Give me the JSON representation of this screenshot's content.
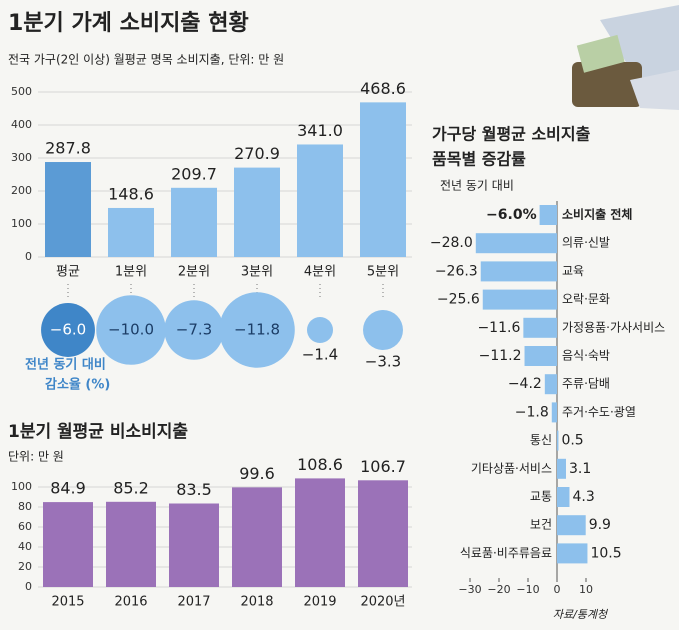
{
  "header": {
    "title": "1분기 가계 소비지출 현황",
    "source": "자료/통계청"
  },
  "chart_data": [
    {
      "type": "bar",
      "subtitle": "전국 가구(2인 이상) 월평균 명목 소비지출, 단위: 만 원",
      "categories": [
        "평균",
        "1분위",
        "2분위",
        "3분위",
        "4분위",
        "5분위"
      ],
      "values": [
        287.8,
        148.6,
        209.7,
        270.9,
        341.0,
        468.6
      ],
      "value_labels": [
        "287.8",
        "148.6",
        "209.7",
        "270.9",
        "341.0",
        "468.6"
      ],
      "colors": [
        "#5b9bd5",
        "#8dc0ec",
        "#8dc0ec",
        "#8dc0ec",
        "#8dc0ec",
        "#8dc0ec"
      ],
      "ylim": [
        0,
        500
      ],
      "yticks": [
        0,
        100,
        200,
        300,
        400,
        500
      ],
      "grid": true
    },
    {
      "type": "bubble",
      "annotation": [
        "전년 동기 대비",
        "감소율 (%)"
      ],
      "categories": [
        "평균",
        "1분위",
        "2분위",
        "3분위",
        "4분위",
        "5분위"
      ],
      "values": [
        -6.0,
        -10.0,
        -7.3,
        -11.8,
        -1.4,
        -3.3
      ],
      "value_labels": [
        "−6.0",
        "−10.0",
        "−7.3",
        "−11.8",
        "−1.4",
        "−3.3"
      ],
      "colors": [
        "#3f86c8",
        "#8dc0ec",
        "#8dc0ec",
        "#8dc0ec",
        "#8dc0ec",
        "#8dc0ec"
      ]
    },
    {
      "type": "bar",
      "title": "1분기 월평균 비소비지출",
      "subtitle": "단위: 만 원",
      "categories": [
        "2015",
        "2016",
        "2017",
        "2018",
        "2019",
        "2020년"
      ],
      "values": [
        84.9,
        85.2,
        83.5,
        99.6,
        108.6,
        106.7
      ],
      "value_labels": [
        "84.9",
        "85.2",
        "83.5",
        "99.6",
        "108.6",
        "106.7"
      ],
      "color": "#9b72b8",
      "ylim": [
        0,
        115
      ],
      "yticks": [
        0,
        20,
        40,
        60,
        80,
        100
      ],
      "grid": true
    },
    {
      "type": "hbar",
      "title": [
        "가구당 월평균 소비지출",
        "품목별 증감률"
      ],
      "subtitle": "전년 동기 대비",
      "categories": [
        "소비지출 전체",
        "의류·신발",
        "교육",
        "오락·문화",
        "가정용품·가사서비스",
        "음식·숙박",
        "주류·담배",
        "주거·수도·광열",
        "통신",
        "기타상품·서비스",
        "교통",
        "보건",
        "식료품·비주류음료"
      ],
      "values": [
        -6.0,
        -28.0,
        -26.3,
        -25.6,
        -11.6,
        -11.2,
        -4.2,
        -1.8,
        0.5,
        3.1,
        4.3,
        9.9,
        10.5
      ],
      "value_labels": [
        "−6.0%",
        "−28.0",
        "−26.3",
        "−25.6",
        "−11.6",
        "−11.2",
        "−4.2",
        "−1.8",
        "0.5",
        "3.1",
        "4.3",
        "9.9",
        "10.5"
      ],
      "color": "#8dc0ec",
      "xlim": [
        -30,
        12
      ],
      "xticks": [
        {
          "value": -30,
          "label": "−30"
        },
        {
          "value": -20,
          "label": "−20"
        },
        {
          "value": -10,
          "label": "−10"
        },
        0,
        10
      ]
    }
  ]
}
